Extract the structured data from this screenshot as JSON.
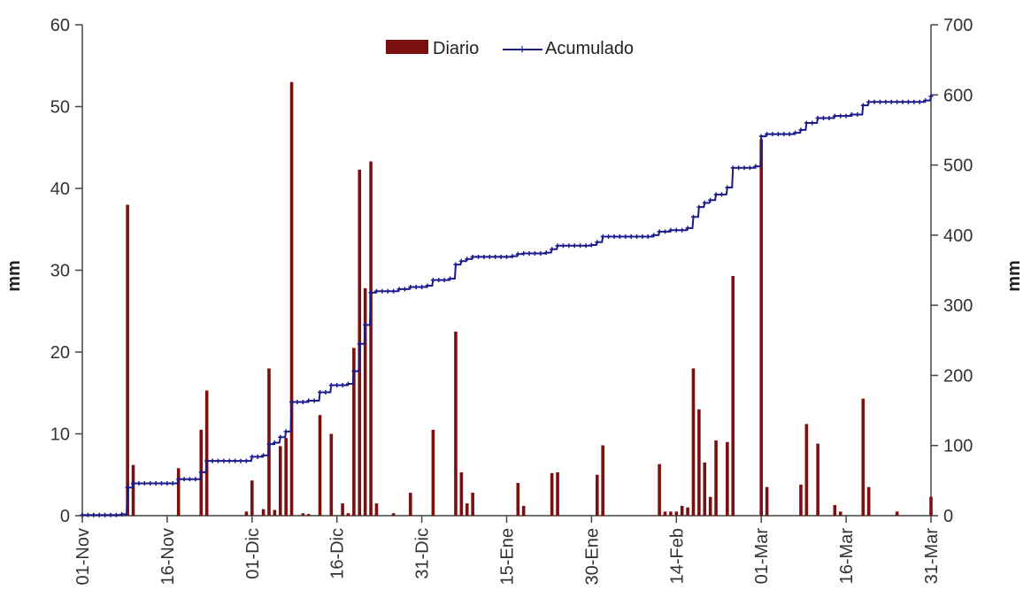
{
  "chart_data": {
    "type": "bar",
    "xlabel": "",
    "ylabel": "mm",
    "y2label": "mm",
    "ylim": [
      0,
      60
    ],
    "y2lim": [
      0,
      700
    ],
    "yticks": [
      0,
      10,
      20,
      30,
      40,
      50,
      60
    ],
    "y2ticks": [
      0,
      100,
      200,
      300,
      400,
      500,
      600,
      700
    ],
    "xrange_days": [
      0,
      150
    ],
    "xticks": [
      {
        "day": 0,
        "label": "01-Nov"
      },
      {
        "day": 15,
        "label": "16-Nov"
      },
      {
        "day": 30,
        "label": "01-Dic"
      },
      {
        "day": 45,
        "label": "16-Dic"
      },
      {
        "day": 60,
        "label": "31-Dic"
      },
      {
        "day": 75,
        "label": "15-Ene"
      },
      {
        "day": 90,
        "label": "30-Ene"
      },
      {
        "day": 105,
        "label": "14-Feb"
      },
      {
        "day": 120,
        "label": "01-Mar"
      },
      {
        "day": 135,
        "label": "16-Mar"
      },
      {
        "day": 150,
        "label": "31-Mar"
      }
    ],
    "legend": {
      "placement": "top-center",
      "entries": [
        "Diario",
        "Acumulado"
      ]
    },
    "colors": {
      "bars": "#7b1010",
      "line": "#1a1a8c"
    },
    "series": [
      {
        "name": "Diario",
        "type": "bar",
        "axis": "left",
        "points": [
          [
            8,
            38
          ],
          [
            9,
            6.2
          ],
          [
            17,
            5.8
          ],
          [
            21,
            10.5
          ],
          [
            22,
            15.3
          ],
          [
            29,
            0.5
          ],
          [
            30,
            4.3
          ],
          [
            32,
            0.8
          ],
          [
            33,
            18
          ],
          [
            34,
            0.7
          ],
          [
            35,
            8.5
          ],
          [
            36,
            9.5
          ],
          [
            37,
            53
          ],
          [
            39,
            0.3
          ],
          [
            40,
            0.2
          ],
          [
            42,
            12.3
          ],
          [
            44,
            10
          ],
          [
            46,
            1.5
          ],
          [
            47,
            0.3
          ],
          [
            48,
            20.5
          ],
          [
            49,
            42.3
          ],
          [
            50,
            27.8
          ],
          [
            51,
            43.3
          ],
          [
            52,
            1.5
          ],
          [
            55,
            0.3
          ],
          [
            58,
            2.8
          ],
          [
            62,
            10.5
          ],
          [
            66,
            22.5
          ],
          [
            67,
            5.3
          ],
          [
            68,
            1.5
          ],
          [
            69,
            2.8
          ],
          [
            77,
            4
          ],
          [
            78,
            1.2
          ],
          [
            83,
            5.2
          ],
          [
            84,
            5.3
          ],
          [
            91,
            5
          ],
          [
            92,
            8.6
          ],
          [
            102,
            6.3
          ],
          [
            103,
            0.5
          ],
          [
            104,
            0.5
          ],
          [
            105,
            0.5
          ],
          [
            106,
            1.2
          ],
          [
            107,
            1
          ],
          [
            108,
            18
          ],
          [
            109,
            13
          ],
          [
            110,
            6.5
          ],
          [
            111,
            2.3
          ],
          [
            112,
            9.2
          ],
          [
            114,
            9
          ],
          [
            115,
            29.3
          ],
          [
            120,
            46
          ],
          [
            121,
            3.5
          ],
          [
            127,
            3.8
          ],
          [
            128,
            11.2
          ],
          [
            130,
            8.8
          ],
          [
            133,
            1.3
          ],
          [
            134,
            0.5
          ],
          [
            138,
            14.3
          ],
          [
            139,
            3.5
          ],
          [
            144,
            0.5
          ],
          [
            150,
            2.3
          ]
        ]
      },
      {
        "name": "Acumulado",
        "type": "line",
        "axis": "right",
        "points": [
          [
            0,
            1
          ],
          [
            7,
            2
          ],
          [
            8,
            40
          ],
          [
            9,
            46
          ],
          [
            16,
            46
          ],
          [
            17,
            52
          ],
          [
            21,
            62
          ],
          [
            22,
            78
          ],
          [
            28,
            78
          ],
          [
            30,
            84
          ],
          [
            32,
            86
          ],
          [
            33,
            102
          ],
          [
            34,
            104
          ],
          [
            35,
            112
          ],
          [
            36,
            120
          ],
          [
            37,
            162
          ],
          [
            40,
            164
          ],
          [
            42,
            176
          ],
          [
            44,
            186
          ],
          [
            47,
            188
          ],
          [
            48,
            206
          ],
          [
            49,
            245
          ],
          [
            50,
            272
          ],
          [
            51,
            318
          ],
          [
            52,
            320
          ],
          [
            56,
            323
          ],
          [
            58,
            326
          ],
          [
            61,
            328
          ],
          [
            62,
            336
          ],
          [
            65,
            338
          ],
          [
            66,
            358
          ],
          [
            67,
            363
          ],
          [
            68,
            366
          ],
          [
            69,
            369
          ],
          [
            76,
            370
          ],
          [
            77,
            373
          ],
          [
            78,
            374
          ],
          [
            82,
            375
          ],
          [
            83,
            380
          ],
          [
            84,
            385
          ],
          [
            90,
            386
          ],
          [
            91,
            390
          ],
          [
            92,
            398
          ],
          [
            101,
            400
          ],
          [
            102,
            405
          ],
          [
            104,
            407
          ],
          [
            107,
            410
          ],
          [
            108,
            426
          ],
          [
            109,
            440
          ],
          [
            110,
            446
          ],
          [
            111,
            450
          ],
          [
            112,
            458
          ],
          [
            114,
            468
          ],
          [
            115,
            496
          ],
          [
            119,
            498
          ],
          [
            120,
            541
          ],
          [
            121,
            544
          ],
          [
            126,
            546
          ],
          [
            127,
            550
          ],
          [
            128,
            560
          ],
          [
            130,
            567
          ],
          [
            133,
            570
          ],
          [
            136,
            572
          ],
          [
            138,
            585
          ],
          [
            139,
            590
          ],
          [
            149,
            592
          ],
          [
            150,
            598
          ]
        ]
      }
    ]
  }
}
